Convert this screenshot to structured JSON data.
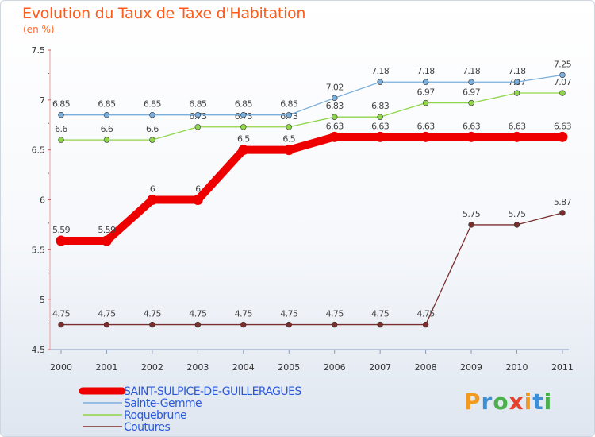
{
  "header": {
    "title": "Evolution du Taux de Taxe d'Habitation",
    "subtitle": "(en %)"
  },
  "logo": {
    "text": "Proxiti",
    "colors": [
      "#f39a1e",
      "#3a8fd6",
      "#4bb04b",
      "#e8422c",
      "#f39a1e",
      "#3a8fd6",
      "#4bb04b"
    ]
  },
  "chart_data": {
    "type": "line",
    "title": "Evolution du Taux de Taxe d'Habitation",
    "ylabel": "(en %)",
    "xlabel": "",
    "ylim": [
      4.5,
      7.5
    ],
    "yticks": [
      "4.5",
      "5",
      "5.5",
      "6",
      "6.5",
      "7",
      "7.5"
    ],
    "categories": [
      "2000",
      "2001",
      "2002",
      "2003",
      "2004",
      "2005",
      "2006",
      "2007",
      "2008",
      "2009",
      "2010",
      "2011"
    ],
    "series": [
      {
        "name": "Coutures",
        "color": "#7a2e2e",
        "values": [
          4.75,
          4.75,
          4.75,
          4.75,
          4.75,
          4.75,
          4.75,
          4.75,
          4.75,
          5.75,
          5.75,
          5.87
        ],
        "labels": [
          "4.75",
          "4.75",
          "4.75",
          "4.75",
          "4.75",
          "4.75",
          "4.75",
          "4.75",
          "4.75",
          "5.75",
          "5.75",
          "5.87"
        ]
      },
      {
        "name": "Roquebrune",
        "color": "#8fd64a",
        "values": [
          6.6,
          6.6,
          6.6,
          6.73,
          6.73,
          6.73,
          6.83,
          6.83,
          6.97,
          6.97,
          7.07,
          7.07
        ],
        "labels": [
          "6.6",
          "6.6",
          "6.6",
          "6.73",
          "6.73",
          "6.73",
          "6.83",
          "6.83",
          "6.97",
          "6.97",
          "7.07",
          "7.07"
        ]
      },
      {
        "name": "Sainte-Gemme",
        "color": "#7aaedc",
        "values": [
          6.85,
          6.85,
          6.85,
          6.85,
          6.85,
          6.85,
          7.02,
          7.18,
          7.18,
          7.18,
          7.18,
          7.25
        ],
        "labels": [
          "6.85",
          "6.85",
          "6.85",
          "6.85",
          "6.85",
          "6.85",
          "7.02",
          "7.18",
          "7.18",
          "7.18",
          "7.18",
          "7.25"
        ]
      },
      {
        "name": "SAINT-SULPICE-DE-GUILLERAGUES",
        "color": "#ee0000",
        "values": [
          5.59,
          5.59,
          6,
          6,
          6.5,
          6.5,
          6.63,
          6.63,
          6.63,
          6.63,
          6.63,
          6.63
        ],
        "labels": [
          "5.59",
          "5.59",
          "6",
          "6",
          "6.5",
          "6.5",
          "6.63",
          "6.63",
          "6.63",
          "6.63",
          "6.63",
          "6.63"
        ]
      }
    ],
    "legend": [
      {
        "name": "SAINT-SULPICE-DE-GUILLERAGUES",
        "color": "#ee0000"
      },
      {
        "name": "Sainte-Gemme",
        "color": "#7aaedc"
      },
      {
        "name": "Roquebrune",
        "color": "#8fd64a"
      },
      {
        "name": "Coutures",
        "color": "#7a2e2e"
      }
    ]
  }
}
